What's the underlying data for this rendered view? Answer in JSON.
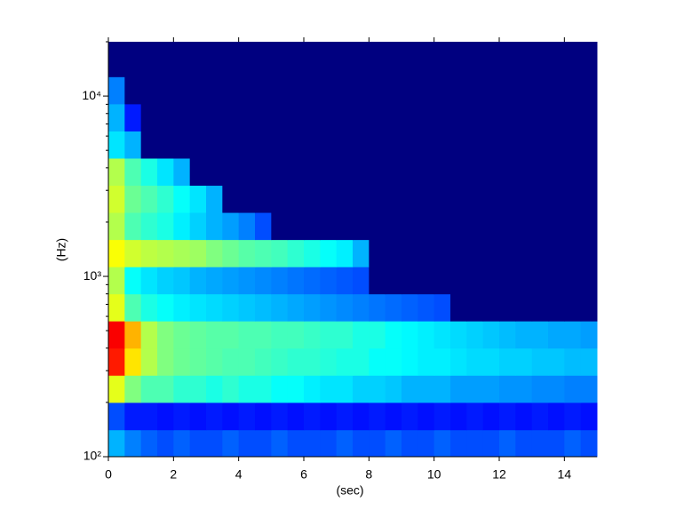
{
  "chart_data": {
    "type": "spectrogram",
    "xlabel": "(sec)",
    "ylabel": "(Hz)",
    "x": [
      0,
      0.5,
      1,
      1.5,
      2,
      2.5,
      3,
      3.5,
      4,
      4.5,
      5,
      5.5,
      6,
      6.5,
      7,
      7.5,
      8,
      8.5,
      9,
      9.5,
      10,
      10.5,
      11,
      11.5,
      12,
      12.5,
      13,
      13.5,
      14,
      14.5,
      15
    ],
    "bands": [
      100,
      141,
      200,
      283,
      400,
      566,
      800,
      1131,
      1600,
      2263,
      3200,
      4525,
      6400,
      9051,
      12800,
      20000
    ],
    "colormap": "jet",
    "z": [
      [
        0.3,
        0.25,
        0.22,
        0.2,
        0.22,
        0.2,
        0.2,
        0.22,
        0.2,
        0.2,
        0.22,
        0.2,
        0.2,
        0.2,
        0.22,
        0.2,
        0.2,
        0.22,
        0.2,
        0.2,
        0.22,
        0.2,
        0.2,
        0.2,
        0.22,
        0.2,
        0.2,
        0.2,
        0.22,
        0.2
      ],
      [
        0.2,
        0.15,
        0.15,
        0.14,
        0.15,
        0.14,
        0.15,
        0.14,
        0.15,
        0.14,
        0.15,
        0.14,
        0.15,
        0.14,
        0.15,
        0.14,
        0.15,
        0.14,
        0.15,
        0.14,
        0.15,
        0.14,
        0.15,
        0.14,
        0.15,
        0.14,
        0.15,
        0.14,
        0.15,
        0.14
      ],
      [
        0.6,
        0.5,
        0.45,
        0.45,
        0.42,
        0.42,
        0.4,
        0.42,
        0.4,
        0.4,
        0.38,
        0.38,
        0.36,
        0.35,
        0.35,
        0.33,
        0.33,
        0.32,
        0.3,
        0.3,
        0.3,
        0.28,
        0.28,
        0.28,
        0.27,
        0.27,
        0.26,
        0.26,
        0.25,
        0.25
      ],
      [
        0.85,
        0.65,
        0.55,
        0.5,
        0.48,
        0.47,
        0.46,
        0.45,
        0.45,
        0.44,
        0.43,
        0.42,
        0.42,
        0.41,
        0.4,
        0.4,
        0.38,
        0.38,
        0.37,
        0.36,
        0.36,
        0.35,
        0.34,
        0.34,
        0.33,
        0.33,
        0.32,
        0.32,
        0.31,
        0.31
      ],
      [
        0.88,
        0.7,
        0.55,
        0.5,
        0.48,
        0.47,
        0.46,
        0.46,
        0.45,
        0.45,
        0.44,
        0.44,
        0.43,
        0.42,
        0.42,
        0.4,
        0.4,
        0.38,
        0.37,
        0.36,
        0.35,
        0.34,
        0.33,
        0.32,
        0.31,
        0.3,
        0.3,
        0.29,
        0.29,
        0.28
      ],
      [
        0.6,
        0.45,
        0.4,
        0.38,
        0.36,
        0.35,
        0.34,
        0.33,
        0.32,
        0.31,
        0.3,
        0.29,
        0.28,
        0.27,
        0.26,
        0.25,
        0.24,
        0.23,
        0.22,
        0.21,
        0.2,
        0,
        0,
        0,
        0,
        0,
        0,
        0,
        0,
        0
      ],
      [
        0.55,
        0.38,
        0.35,
        0.33,
        0.32,
        0.3,
        0.29,
        0.28,
        0.27,
        0.26,
        0.25,
        0.24,
        0.23,
        0.22,
        0.21,
        0.2,
        0,
        0,
        0,
        0,
        0,
        0,
        0,
        0,
        0,
        0,
        0,
        0,
        0,
        0
      ],
      [
        0.62,
        0.58,
        0.56,
        0.55,
        0.54,
        0.53,
        0.5,
        0.48,
        0.46,
        0.45,
        0.44,
        0.42,
        0.4,
        0.38,
        0.36,
        0.3,
        0,
        0,
        0,
        0,
        0,
        0,
        0,
        0,
        0,
        0,
        0,
        0,
        0,
        0
      ],
      [
        0.55,
        0.45,
        0.42,
        0.4,
        0.36,
        0.33,
        0.3,
        0.28,
        0.25,
        0.2,
        0,
        0,
        0,
        0,
        0,
        0,
        0,
        0,
        0,
        0,
        0,
        0,
        0,
        0,
        0,
        0,
        0,
        0,
        0,
        0
      ],
      [
        0.58,
        0.48,
        0.45,
        0.42,
        0.38,
        0.35,
        0.3,
        0,
        0,
        0,
        0,
        0,
        0,
        0,
        0,
        0,
        0,
        0,
        0,
        0,
        0,
        0,
        0,
        0,
        0,
        0,
        0,
        0,
        0,
        0
      ],
      [
        0.55,
        0.45,
        0.4,
        0.35,
        0.3,
        0,
        0,
        0,
        0,
        0,
        0,
        0,
        0,
        0,
        0,
        0,
        0,
        0,
        0,
        0,
        0,
        0,
        0,
        0,
        0,
        0,
        0,
        0,
        0,
        0
      ],
      [
        0.35,
        0.3,
        0,
        0,
        0,
        0,
        0,
        0,
        0,
        0,
        0,
        0,
        0,
        0,
        0,
        0,
        0,
        0,
        0,
        0,
        0,
        0,
        0,
        0,
        0,
        0,
        0,
        0,
        0,
        0
      ],
      [
        0.3,
        0.15,
        0,
        0,
        0,
        0,
        0,
        0,
        0,
        0,
        0,
        0,
        0,
        0,
        0,
        0,
        0,
        0,
        0,
        0,
        0,
        0,
        0,
        0,
        0,
        0,
        0,
        0,
        0,
        0
      ],
      [
        0.25,
        0,
        0,
        0,
        0,
        0,
        0,
        0,
        0,
        0,
        0,
        0,
        0,
        0,
        0,
        0,
        0,
        0,
        0,
        0,
        0,
        0,
        0,
        0,
        0,
        0,
        0,
        0,
        0,
        0
      ],
      [
        0,
        0,
        0,
        0,
        0,
        0,
        0,
        0,
        0,
        0,
        0,
        0,
        0,
        0,
        0,
        0,
        0,
        0,
        0,
        0,
        0,
        0,
        0,
        0,
        0,
        0,
        0,
        0,
        0,
        0
      ]
    ],
    "xlim": [
      0,
      15
    ],
    "xticks": [
      0,
      2,
      4,
      6,
      8,
      10,
      12,
      14
    ],
    "ylim": [
      100,
      20000
    ],
    "yscale": "log",
    "yticks": [
      {
        "value": 100,
        "label": "10²"
      },
      {
        "value": 1000,
        "label": "10³"
      },
      {
        "value": 10000,
        "label": "10⁴"
      }
    ],
    "yminorticks": [
      200,
      300,
      400,
      500,
      600,
      700,
      800,
      900,
      2000,
      3000,
      4000,
      5000,
      6000,
      7000,
      8000,
      9000,
      20000
    ]
  }
}
